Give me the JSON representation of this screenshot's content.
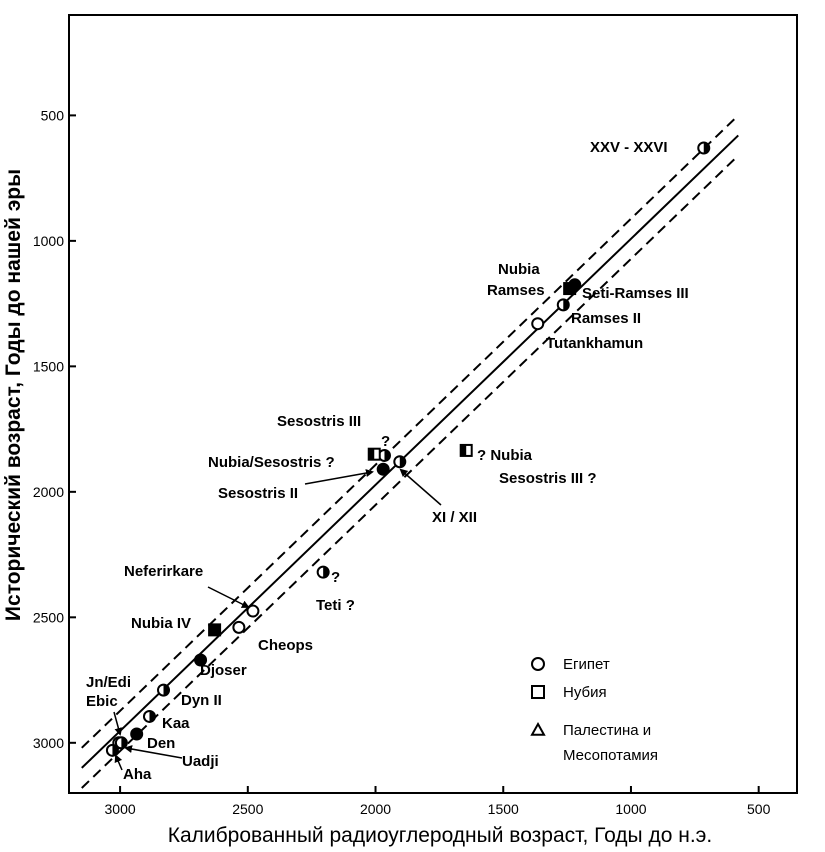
{
  "chart_data": {
    "type": "scatter",
    "xlabel": "Калиброванный радиоуглеродный возраст, Годы до н.э.",
    "ylabel": "Исторический возраст, Годы до нашей эры",
    "x_ticks": [
      "3000",
      "2500",
      "2000",
      "1500",
      "1000",
      "500"
    ],
    "y_ticks": [
      "500",
      "1000",
      "1500",
      "2000",
      "2500",
      "3000"
    ],
    "xlim": [
      3200,
      350
    ],
    "ylim": [
      3200,
      100
    ],
    "x_reversed": true,
    "y_reversed": true,
    "grid": false,
    "legend_position": "bottom-right",
    "legend": [
      {
        "symbol": "circle",
        "label": "Египет"
      },
      {
        "symbol": "square",
        "label": "Нубия"
      },
      {
        "symbol": "triangle",
        "label": "Палестина  и"
      },
      {
        "symbol": "",
        "label": "Месопотамия"
      }
    ],
    "reference_lines": [
      {
        "style": "solid",
        "x": [
          3150,
          580
        ],
        "y": [
          3100,
          580
        ]
      },
      {
        "style": "dashed",
        "x": [
          3150,
          580
        ],
        "y": [
          3020,
          500
        ]
      },
      {
        "style": "dashed",
        "x": [
          3150,
          580
        ],
        "y": [
          3180,
          660
        ]
      }
    ],
    "points": [
      {
        "label": "XXV-XXVI",
        "x": 715,
        "y": 630,
        "marker": "circle",
        "fill": "half"
      },
      {
        "label": "Seti-Ramses III",
        "x": 1220,
        "y": 1175,
        "marker": "circle",
        "fill": "full"
      },
      {
        "label": "Nubia Ramses",
        "x": 1240,
        "y": 1190,
        "marker": "square",
        "fill": "full"
      },
      {
        "label": "Ramses II",
        "x": 1265,
        "y": 1255,
        "marker": "circle",
        "fill": "half"
      },
      {
        "label": "Tutankhamun",
        "x": 1365,
        "y": 1330,
        "marker": "circle",
        "fill": "none"
      },
      {
        "label": "Sesostris III",
        "x": 1965,
        "y": 1855,
        "marker": "circle",
        "fill": "half"
      },
      {
        "label": "Nubia/Sesostris",
        "x": 2005,
        "y": 1850,
        "marker": "square",
        "fill": "half"
      },
      {
        "label": "Sesostris II",
        "x": 1970,
        "y": 1910,
        "marker": "circle",
        "fill": "full"
      },
      {
        "label": "XI/XII",
        "x": 1905,
        "y": 1880,
        "marker": "circle",
        "fill": "half"
      },
      {
        "label": "Nubia Sesostris III",
        "x": 1645,
        "y": 1835,
        "marker": "square",
        "fill": "half"
      },
      {
        "label": "Teti",
        "x": 2205,
        "y": 2320,
        "marker": "circle",
        "fill": "half"
      },
      {
        "label": "Neferirkare",
        "x": 2480,
        "y": 2475,
        "marker": "circle",
        "fill": "none"
      },
      {
        "label": "Cheops",
        "x": 2535,
        "y": 2540,
        "marker": "circle",
        "fill": "none"
      },
      {
        "label": "Nubia IV",
        "x": 2630,
        "y": 2550,
        "marker": "square",
        "fill": "full"
      },
      {
        "label": "Djoser",
        "x": 2685,
        "y": 2670,
        "marker": "circle",
        "fill": "full"
      },
      {
        "label": "Dyn II",
        "x": 2830,
        "y": 2790,
        "marker": "circle",
        "fill": "half"
      },
      {
        "label": "Kaa",
        "x": 2885,
        "y": 2895,
        "marker": "circle",
        "fill": "half"
      },
      {
        "label": "Den",
        "x": 2935,
        "y": 2965,
        "marker": "circle",
        "fill": "full"
      },
      {
        "label": "Jn/Edi Ebic",
        "x": 3005,
        "y": 3000,
        "marker": "circle",
        "fill": "half"
      },
      {
        "label": "Uadji",
        "x": 2995,
        "y": 3000,
        "marker": "circle",
        "fill": "half"
      },
      {
        "label": "Aha",
        "x": 3030,
        "y": 3030,
        "marker": "circle",
        "fill": "half"
      }
    ],
    "annotations": [
      {
        "text": "XXV - XXVI"
      },
      {
        "text": "Nubia"
      },
      {
        "text": "Ramses"
      },
      {
        "text": "Seti-Ramses III"
      },
      {
        "text": "Ramses II"
      },
      {
        "text": "Tutankhamun"
      },
      {
        "text": "Sesostris III"
      },
      {
        "text": "?"
      },
      {
        "text": "Nubia/Sesostris ?"
      },
      {
        "text": "Sesostris II"
      },
      {
        "text": "XI / XII"
      },
      {
        "text": "? Nubia"
      },
      {
        "text": "Sesostris III ?"
      },
      {
        "text": "?"
      },
      {
        "text": "Teti ?"
      },
      {
        "text": "Neferirkare"
      },
      {
        "text": "Nubia IV"
      },
      {
        "text": "Cheops"
      },
      {
        "text": "Djoser"
      },
      {
        "text": "Dyn II"
      },
      {
        "text": "Jn/Edi"
      },
      {
        "text": "Ebic"
      },
      {
        "text": "Kaa"
      },
      {
        "text": "Den"
      },
      {
        "text": "Uadji"
      },
      {
        "text": "Aha"
      }
    ]
  }
}
